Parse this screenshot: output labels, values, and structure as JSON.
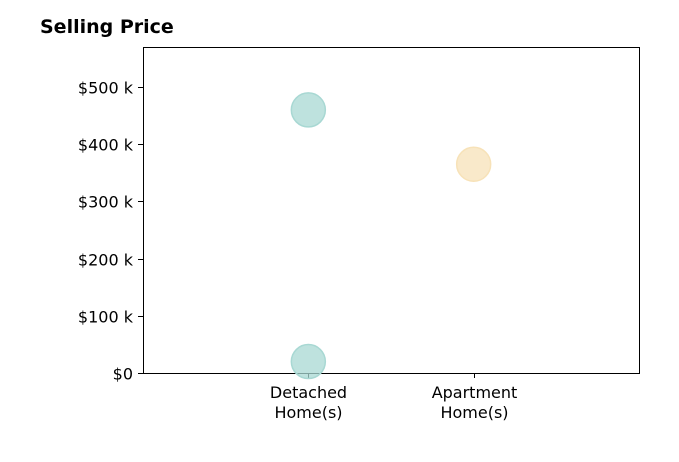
{
  "chart_data": {
    "type": "scatter",
    "title": "Selling Price",
    "xlabel": "",
    "ylabel": "",
    "categories": [
      [
        "Detached",
        "Home(s)"
      ],
      [
        "Apartment",
        "Home(s)"
      ]
    ],
    "x_range": [
      0,
      3
    ],
    "ylim": [
      0,
      570
    ],
    "y_unit": "thousand dollars",
    "y_ticks": [
      {
        "value": 0,
        "label": "$0"
      },
      {
        "value": 100,
        "label": "$100 k"
      },
      {
        "value": 200,
        "label": "$200 k"
      },
      {
        "value": 300,
        "label": "$300 k"
      },
      {
        "value": 400,
        "label": "$400 k"
      },
      {
        "value": 500,
        "label": "$500 k"
      }
    ],
    "points": [
      {
        "category_index": 0,
        "y": 460,
        "color": "#a8d8d3"
      },
      {
        "category_index": 0,
        "y": 20,
        "color": "#a8d8d3"
      },
      {
        "category_index": 1,
        "y": 365,
        "color": "#f7e2b8"
      }
    ],
    "grid": false,
    "legend": "none"
  }
}
